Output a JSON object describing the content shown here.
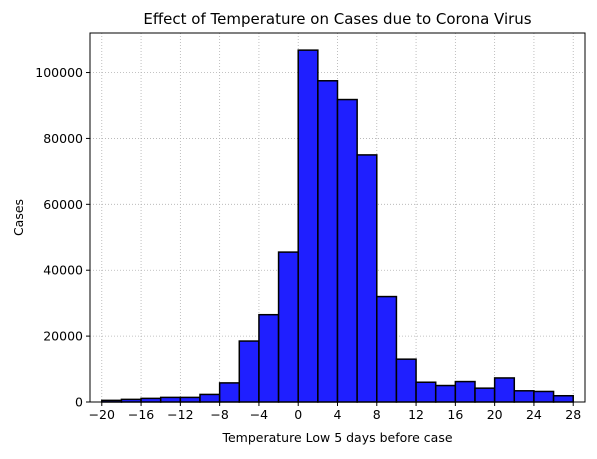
{
  "chart_data": {
    "type": "bar",
    "subtype": "histogram",
    "title": "Effect of Temperature on Cases due to Corona Virus",
    "xlabel": "Temperature Low 5 days before case",
    "ylabel": "Cases",
    "bin_edges": [
      -20,
      -18,
      -16,
      -14,
      -12,
      -10,
      -8,
      -6,
      -4,
      -2,
      0,
      2,
      4,
      6,
      8,
      10,
      12,
      14,
      16,
      18,
      20,
      22,
      24,
      26,
      28
    ],
    "values": [
      500,
      800,
      1100,
      1400,
      1400,
      2300,
      5800,
      18500,
      26500,
      45500,
      106800,
      97500,
      91800,
      75000,
      32000,
      13000,
      6000,
      5000,
      6200,
      4200,
      7300,
      3400,
      3200,
      1900
    ],
    "xlim": [
      -21.2,
      29.2
    ],
    "ylim": [
      0,
      112000
    ],
    "xticks": [
      -20,
      -16,
      -12,
      -8,
      -4,
      0,
      4,
      8,
      12,
      16,
      20,
      24,
      28
    ],
    "yticks": [
      0,
      20000,
      40000,
      60000,
      80000,
      100000
    ],
    "grid": true,
    "bar_color": "#1f1fff",
    "edge_color": "#000000",
    "grid_color": "#b0b0b0"
  }
}
